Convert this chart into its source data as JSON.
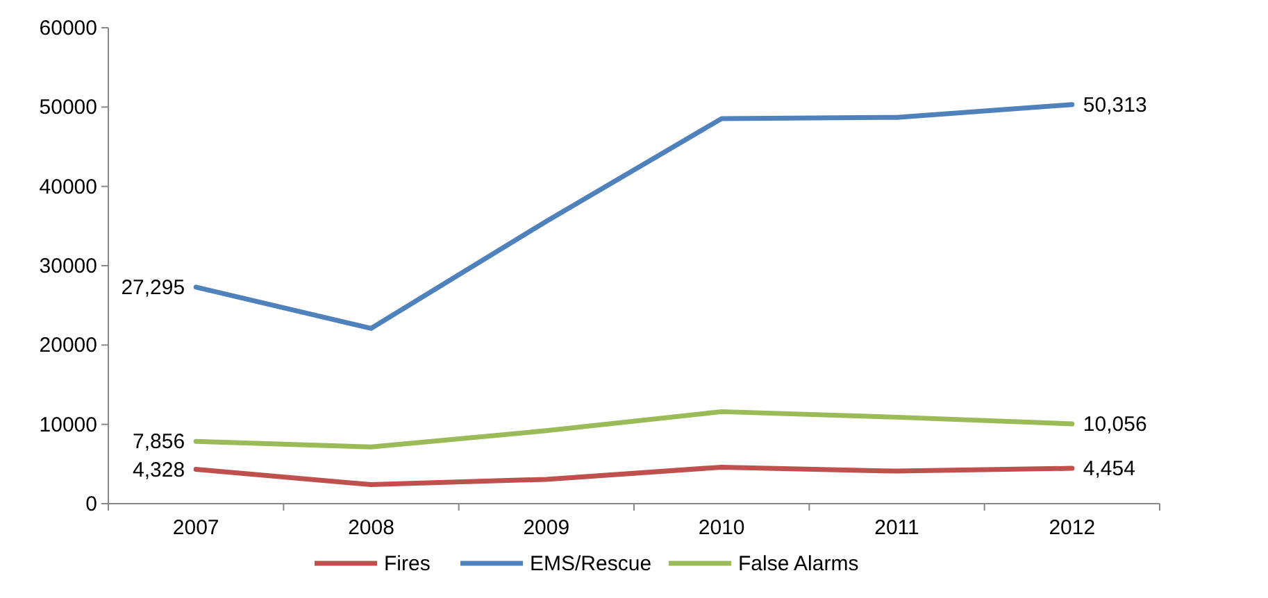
{
  "chart_data": {
    "type": "line",
    "categories": [
      "2007",
      "2008",
      "2009",
      "2010",
      "2011",
      "2012"
    ],
    "series": [
      {
        "name": "Fires",
        "color": "#c0504d",
        "values": [
          4328,
          2400,
          3070,
          4600,
          4100,
          4454
        ],
        "value_labels": [
          "4,328",
          null,
          null,
          null,
          null,
          "4,454"
        ]
      },
      {
        "name": "EMS/Rescue",
        "color": "#4f81bd",
        "values": [
          27295,
          22100,
          35600,
          48550,
          48700,
          50313
        ],
        "value_labels": [
          "27,295",
          null,
          null,
          null,
          null,
          "50,313"
        ]
      },
      {
        "name": "False Alarms",
        "color": "#9bbb59",
        "values": [
          7856,
          7150,
          9200,
          11600,
          10900,
          10056
        ],
        "value_labels": [
          "7,856",
          null,
          null,
          null,
          null,
          "10,056"
        ]
      }
    ],
    "ylim": [
      0,
      60000
    ],
    "yticks": [
      0,
      10000,
      20000,
      30000,
      40000,
      50000,
      60000
    ],
    "legend": "bottom",
    "marker": "none",
    "line_style": "solid"
  }
}
